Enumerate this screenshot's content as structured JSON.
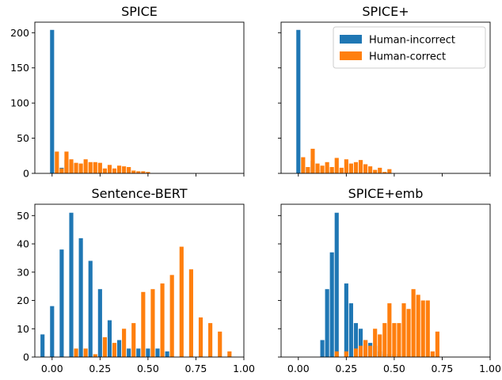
{
  "chart_data": [
    {
      "type": "bar",
      "title": "SPICE",
      "xlim": [
        -0.09,
        1.0
      ],
      "ylim": [
        0,
        215
      ],
      "xticks": [
        0.0,
        0.25,
        0.5,
        0.75,
        1.0
      ],
      "xtick_labels": [],
      "yticks": [
        0,
        50,
        100,
        150,
        200
      ],
      "ytick_labels": [
        "0",
        "50",
        "100",
        "150",
        "200"
      ],
      "series": [
        {
          "name": "Human-incorrect",
          "color": "#1f77b4",
          "bins": [
            [
              0.0,
              204
            ],
            [
              0.05,
              8
            ],
            [
              0.075,
              19
            ],
            [
              0.1,
              14
            ],
            [
              0.15,
              2
            ]
          ]
        },
        {
          "name": "Human-correct",
          "color": "#ff7f0e",
          "bins": [
            [
              0.025,
              31
            ],
            [
              0.05,
              7
            ],
            [
              0.075,
              31
            ],
            [
              0.1,
              20
            ],
            [
              0.125,
              15
            ],
            [
              0.15,
              14
            ],
            [
              0.175,
              20
            ],
            [
              0.2,
              16
            ],
            [
              0.225,
              16
            ],
            [
              0.25,
              15
            ],
            [
              0.275,
              7
            ],
            [
              0.3,
              12
            ],
            [
              0.325,
              7
            ],
            [
              0.35,
              11
            ],
            [
              0.375,
              10
            ],
            [
              0.4,
              9
            ],
            [
              0.425,
              4
            ],
            [
              0.45,
              3
            ],
            [
              0.475,
              3
            ],
            [
              0.5,
              2
            ]
          ]
        }
      ]
    },
    {
      "type": "bar",
      "title": "SPICE+",
      "xlim": [
        -0.09,
        1.0
      ],
      "ylim": [
        0,
        215
      ],
      "xticks": [
        0.0,
        0.25,
        0.5,
        0.75,
        1.0
      ],
      "xtick_labels": [],
      "yticks": [
        0,
        50,
        100,
        150,
        200
      ],
      "ytick_labels": [],
      "legend": {
        "position": "upper right",
        "entries": [
          "Human-incorrect",
          "Human-correct"
        ]
      },
      "series": [
        {
          "name": "Human-incorrect",
          "color": "#1f77b4",
          "bins": [
            [
              0.0,
              204
            ],
            [
              0.05,
              9
            ],
            [
              0.075,
              18
            ],
            [
              0.1,
              5
            ],
            [
              0.15,
              3
            ],
            [
              0.175,
              2
            ]
          ]
        },
        {
          "name": "Human-correct",
          "color": "#ff7f0e",
          "bins": [
            [
              0.025,
              23
            ],
            [
              0.05,
              9
            ],
            [
              0.075,
              35
            ],
            [
              0.1,
              14
            ],
            [
              0.125,
              11
            ],
            [
              0.15,
              16
            ],
            [
              0.175,
              9
            ],
            [
              0.2,
              22
            ],
            [
              0.225,
              8
            ],
            [
              0.25,
              20
            ],
            [
              0.275,
              14
            ],
            [
              0.3,
              16
            ],
            [
              0.325,
              19
            ],
            [
              0.35,
              13
            ],
            [
              0.375,
              10
            ],
            [
              0.4,
              5
            ],
            [
              0.425,
              8
            ],
            [
              0.45,
              2
            ],
            [
              0.475,
              6
            ]
          ]
        }
      ]
    },
    {
      "type": "bar",
      "title": "Sentence-BERT",
      "xlim": [
        -0.09,
        1.0
      ],
      "ylim": [
        0,
        54
      ],
      "xticks": [
        0.0,
        0.25,
        0.5,
        0.75,
        1.0
      ],
      "xtick_labels": [
        "0.00",
        "0.25",
        "0.50",
        "0.75",
        "1.00"
      ],
      "yticks": [
        0,
        10,
        20,
        30,
        40,
        50
      ],
      "ytick_labels": [
        "0",
        "10",
        "20",
        "30",
        "40",
        "50"
      ],
      "series": [
        {
          "name": "Human-incorrect",
          "color": "#1f77b4",
          "bins": [
            [
              -0.05,
              8
            ],
            [
              0.0,
              18
            ],
            [
              0.05,
              38
            ],
            [
              0.1,
              51
            ],
            [
              0.15,
              42
            ],
            [
              0.2,
              34
            ],
            [
              0.25,
              24
            ],
            [
              0.3,
              13
            ],
            [
              0.35,
              6
            ],
            [
              0.4,
              3
            ],
            [
              0.45,
              3
            ],
            [
              0.5,
              3
            ],
            [
              0.55,
              3
            ],
            [
              0.6,
              2
            ]
          ]
        },
        {
          "name": "Human-correct",
          "color": "#ff7f0e",
          "bins": [
            [
              0.125,
              3
            ],
            [
              0.175,
              3
            ],
            [
              0.225,
              1
            ],
            [
              0.275,
              7
            ],
            [
              0.325,
              5
            ],
            [
              0.375,
              10
            ],
            [
              0.425,
              12
            ],
            [
              0.475,
              23
            ],
            [
              0.525,
              24
            ],
            [
              0.575,
              26
            ],
            [
              0.625,
              29
            ],
            [
              0.675,
              39
            ],
            [
              0.725,
              31
            ],
            [
              0.775,
              14
            ],
            [
              0.825,
              12
            ],
            [
              0.875,
              9
            ],
            [
              0.925,
              2
            ]
          ]
        }
      ]
    },
    {
      "type": "bar",
      "title": "SPICE+emb",
      "xlim": [
        -0.09,
        1.0
      ],
      "ylim": [
        0,
        54
      ],
      "xticks": [
        0.0,
        0.25,
        0.5,
        0.75,
        1.0
      ],
      "xtick_labels": [
        "0.00",
        "0.25",
        "0.50",
        "0.75",
        "1.00"
      ],
      "yticks": [
        0,
        10,
        20,
        30,
        40,
        50
      ],
      "ytick_labels": [],
      "series": [
        {
          "name": "Human-incorrect",
          "color": "#1f77b4",
          "bins": [
            [
              0.125,
              6
            ],
            [
              0.15,
              24
            ],
            [
              0.175,
              37
            ],
            [
              0.2,
              51
            ],
            [
              0.25,
              26
            ],
            [
              0.275,
              19
            ],
            [
              0.3,
              12
            ],
            [
              0.325,
              10
            ],
            [
              0.35,
              6
            ],
            [
              0.375,
              5
            ],
            [
              0.4,
              4
            ],
            [
              0.425,
              2
            ],
            [
              0.45,
              1
            ],
            [
              0.475,
              1
            ],
            [
              0.5,
              1
            ],
            [
              0.525,
              1
            ]
          ]
        },
        {
          "name": "Human-correct",
          "color": "#ff7f0e",
          "bins": [
            [
              0.2,
              2
            ],
            [
              0.25,
              2
            ],
            [
              0.3,
              3
            ],
            [
              0.325,
              4
            ],
            [
              0.35,
              6
            ],
            [
              0.375,
              4
            ],
            [
              0.4,
              10
            ],
            [
              0.425,
              8
            ],
            [
              0.45,
              12
            ],
            [
              0.475,
              19
            ],
            [
              0.5,
              12
            ],
            [
              0.525,
              12
            ],
            [
              0.55,
              19
            ],
            [
              0.575,
              17
            ],
            [
              0.6,
              24
            ],
            [
              0.625,
              22
            ],
            [
              0.65,
              20
            ],
            [
              0.675,
              20
            ],
            [
              0.7,
              2
            ],
            [
              0.725,
              9
            ]
          ]
        }
      ]
    }
  ]
}
